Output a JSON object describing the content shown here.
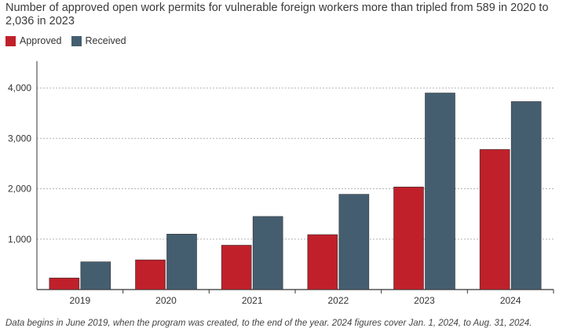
{
  "chart_data": {
    "type": "bar",
    "title": "Number of approved open work permits for vulnerable foreign workers more than tripled from 589 in 2020 to 2,036 in 2023",
    "categories": [
      "2019",
      "2020",
      "2021",
      "2022",
      "2023",
      "2024"
    ],
    "series": [
      {
        "name": "Approved",
        "color": "#c0202a",
        "values": [
          230,
          589,
          880,
          1090,
          2036,
          2780
        ]
      },
      {
        "name": "Received",
        "color": "#445e70",
        "values": [
          550,
          1100,
          1450,
          1890,
          3900,
          3730
        ]
      }
    ],
    "yticks": [
      1000,
      2000,
      3000,
      4000
    ],
    "ytick_labels": [
      "1,000",
      "2,000",
      "3,000",
      "4,000"
    ],
    "ylim": [
      0,
      4500
    ],
    "grid": true,
    "legend_position": "top-left",
    "footnote": "Data begins in June 2019, when the program was created, to the end of the year. 2024 figures cover Jan. 1, 2024, to Aug. 31, 2024."
  }
}
